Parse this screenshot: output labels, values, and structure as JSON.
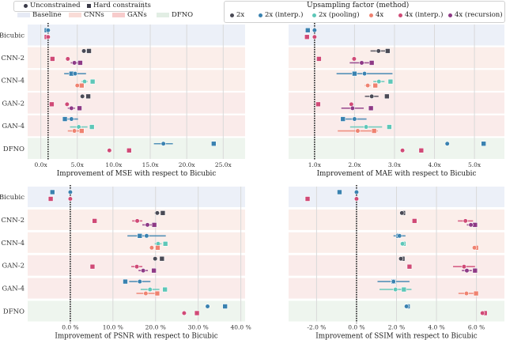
{
  "legend_marker": {
    "items": [
      {
        "label": "Unconstrained",
        "marker": "circle",
        "color": "#3a3a48"
      },
      {
        "label": "Hard constraints",
        "marker": "square",
        "color": "#3a3a48"
      }
    ]
  },
  "legend_groups": {
    "items": [
      {
        "label": "Baseline",
        "color": "#e9ecf6"
      },
      {
        "label": "CNNs",
        "color": "#f9e2e0"
      },
      {
        "label": "GANs",
        "color": "#f7d2d2"
      },
      {
        "label": "DFNO",
        "color": "#e4efe6"
      }
    ]
  },
  "legend_method": {
    "title": "Upsampling factor (method)",
    "items": [
      {
        "label": "2x",
        "color": "#4a4a55"
      },
      {
        "label": "2x (interp.)",
        "color": "#3a82b0"
      },
      {
        "label": "2x (pooling)",
        "color": "#5ec7b8"
      },
      {
        "label": "4x",
        "color": "#ef8270"
      },
      {
        "label": "4x (interp.)",
        "color": "#d04a76"
      },
      {
        "label": "4x (recursion)",
        "color": "#8e3a86"
      }
    ]
  },
  "colors": {
    "2x": "#4a4a55",
    "2x (interp.)": "#3a82b0",
    "2x (pooling)": "#5ec7b8",
    "4x": "#ef8270",
    "4x (interp.)": "#d04a76",
    "4x (recursion)": "#8e3a86",
    "band_baseline": "#ecf0f8",
    "band_cnn": "#fbeeea",
    "band_gan": "#faebea",
    "band_dfno": "#eef5ee",
    "grid": "#d9d9d9",
    "ref_line": "#111111"
  },
  "chart_data": [
    {
      "type": "scatter",
      "title": "",
      "xlabel": "Improvement of MSE with respect to Bicubic",
      "ylabel": "",
      "xlim": [
        -1.8,
        28
      ],
      "xticks": [
        0,
        5,
        10,
        15,
        20,
        25
      ],
      "xtick_labels": [
        "0.0x",
        "5.0x",
        "10.0x",
        "15.0x",
        "20.0x",
        "25.0x"
      ],
      "reference_x": 1.0,
      "categories": [
        "Bicubic",
        "CNN-2",
        "CNN-4",
        "GAN-2",
        "GAN-4",
        "DFNO"
      ],
      "category_groups": [
        "Baseline",
        "CNNs",
        "CNNs",
        "GANs",
        "GANs",
        "DFNO"
      ],
      "points": [
        {
          "cat": "Bicubic",
          "method": "2x (interp.)",
          "unconstrained": 1.0,
          "hard": 0.8,
          "row": 0
        },
        {
          "cat": "Bicubic",
          "method": "4x (interp.)",
          "unconstrained": 1.0,
          "hard": 0.8,
          "row": 1
        },
        {
          "cat": "CNN-2",
          "method": "2x",
          "unconstrained": 5.9,
          "hard": 6.6,
          "err": 0.3,
          "row": 0
        },
        {
          "cat": "CNN-2",
          "method": "4x (interp.)",
          "unconstrained": 3.7,
          "hard": 1.6,
          "row": 1
        },
        {
          "cat": "CNN-2",
          "method": "4x (recursion)",
          "unconstrained": 4.6,
          "hard": 5.4,
          "err": 0.5,
          "row": 2
        },
        {
          "cat": "CNN-4",
          "method": "2x (interp.)",
          "unconstrained": 4.7,
          "hard": 4.2,
          "err": 1.5,
          "row": 0
        },
        {
          "cat": "CNN-4",
          "method": "2x (pooling)",
          "unconstrained": 6.0,
          "hard": 7.1,
          "err": 0.4,
          "row": 1
        },
        {
          "cat": "CNN-4",
          "method": "4x",
          "unconstrained": 5.0,
          "hard": 5.6,
          "row": 2
        },
        {
          "cat": "GAN-2",
          "method": "2x",
          "unconstrained": 5.7,
          "hard": 6.5,
          "row": 0
        },
        {
          "cat": "GAN-2",
          "method": "4x (interp.)",
          "unconstrained": 3.6,
          "hard": 1.5,
          "row": 1
        },
        {
          "cat": "GAN-2",
          "method": "4x (recursion)",
          "unconstrained": 4.2,
          "hard": 5.3,
          "err": 0.5,
          "row": 2
        },
        {
          "cat": "GAN-4",
          "method": "2x (interp.)",
          "unconstrained": 4.2,
          "hard": 3.3,
          "err": 0.9,
          "row": 0
        },
        {
          "cat": "GAN-4",
          "method": "2x (pooling)",
          "unconstrained": 5.2,
          "hard": 7.0,
          "err": 1.2,
          "row": 1
        },
        {
          "cat": "GAN-4",
          "method": "4x",
          "unconstrained": 4.6,
          "hard": 5.6,
          "err": 0.9,
          "row": 2
        },
        {
          "cat": "DFNO",
          "method": "2x (interp.)",
          "unconstrained": 16.8,
          "hard": 23.7,
          "err": 1.3,
          "row": 0
        },
        {
          "cat": "DFNO",
          "method": "4x (interp.)",
          "unconstrained": 9.4,
          "hard": 12.1,
          "row": 1
        }
      ]
    },
    {
      "type": "scatter",
      "title": "",
      "xlabel": "Improvement of MAE with respect to Bicubic",
      "ylabel": "",
      "xlim": [
        0.35,
        5.75
      ],
      "xticks": [
        1,
        2,
        3,
        4,
        5
      ],
      "xtick_labels": [
        "1.0x",
        "2.0x",
        "3.0x",
        "4.0x",
        "5.0x"
      ],
      "reference_x": 1.0,
      "categories": [
        "Bicubic",
        "CNN-2",
        "CNN-4",
        "GAN-2",
        "GAN-4",
        "DFNO"
      ],
      "category_groups": [
        "Baseline",
        "CNNs",
        "CNNs",
        "GANs",
        "GANs",
        "DFNO"
      ],
      "points": [
        {
          "cat": "Bicubic",
          "method": "2x (interp.)",
          "unconstrained": 1.0,
          "hard": 0.83,
          "row": 0
        },
        {
          "cat": "Bicubic",
          "method": "4x (interp.)",
          "unconstrained": 1.0,
          "hard": 0.81,
          "row": 1
        },
        {
          "cat": "CNN-2",
          "method": "2x",
          "unconstrained": 2.6,
          "hard": 2.83,
          "err": 0.2,
          "row": 0
        },
        {
          "cat": "CNN-2",
          "method": "4x (interp.)",
          "unconstrained": 1.99,
          "hard": 1.11,
          "err": 0.06,
          "row": 1
        },
        {
          "cat": "CNN-2",
          "method": "4x (recursion)",
          "unconstrained": 2.18,
          "hard": 2.43,
          "err": 0.3,
          "row": 2
        },
        {
          "cat": "CNN-4",
          "method": "2x (interp.)",
          "unconstrained": 2.25,
          "hard": 2.0,
          "err": 0.7,
          "row": 0
        },
        {
          "cat": "CNN-4",
          "method": "2x (pooling)",
          "unconstrained": 2.61,
          "hard": 2.9,
          "err": 0.14,
          "row": 1
        },
        {
          "cat": "CNN-4",
          "method": "4x",
          "unconstrained": 2.33,
          "hard": 2.52,
          "err": 0.07,
          "row": 2
        },
        {
          "cat": "GAN-2",
          "method": "2x",
          "unconstrained": 2.43,
          "hard": 2.81,
          "err": 0.17,
          "row": 0
        },
        {
          "cat": "GAN-2",
          "method": "4x (interp.)",
          "unconstrained": 1.92,
          "hard": 1.09,
          "err": 0.05,
          "row": 1
        },
        {
          "cat": "GAN-2",
          "method": "4x (recursion)",
          "unconstrained": 1.95,
          "hard": 2.41,
          "err": 0.28,
          "row": 2
        },
        {
          "cat": "GAN-4",
          "method": "2x (interp.)",
          "unconstrained": 2.0,
          "hard": 1.71,
          "err": 0.3,
          "row": 0
        },
        {
          "cat": "GAN-4",
          "method": "2x (pooling)",
          "unconstrained": 2.29,
          "hard": 2.87,
          "err": 0.4,
          "row": 1
        },
        {
          "cat": "GAN-4",
          "method": "4x",
          "unconstrained": 2.08,
          "hard": 2.49,
          "err": 0.5,
          "row": 2
        },
        {
          "cat": "DFNO",
          "method": "2x (interp.)",
          "unconstrained": 4.32,
          "hard": 5.23,
          "row": 0
        },
        {
          "cat": "DFNO",
          "method": "4x (interp.)",
          "unconstrained": 3.2,
          "hard": 3.67,
          "row": 1
        }
      ]
    },
    {
      "type": "scatter",
      "title": "",
      "xlabel": "Improvement of PSNR with respect to Bicubic",
      "ylabel": "",
      "xlim": [
        -10,
        41
      ],
      "xticks": [
        0,
        10,
        20,
        30,
        40
      ],
      "xtick_labels": [
        "0.0 %",
        "10.0 %",
        "20.0 %",
        "30.0 %",
        "40.0 %"
      ],
      "reference_x": 0.0,
      "categories": [
        "Bicubic",
        "CNN-2",
        "CNN-4",
        "GAN-2",
        "GAN-4",
        "DFNO"
      ],
      "category_groups": [
        "Baseline",
        "CNNs",
        "CNNs",
        "GANs",
        "GANs",
        "DFNO"
      ],
      "points": [
        {
          "cat": "Bicubic",
          "method": "2x (interp.)",
          "unconstrained": 0.0,
          "hard": -4.2,
          "row": 0
        },
        {
          "cat": "Bicubic",
          "method": "4x (interp.)",
          "unconstrained": 0.0,
          "hard": -4.6,
          "row": 1
        },
        {
          "cat": "CNN-2",
          "method": "2x",
          "unconstrained": 20.4,
          "hard": 21.7,
          "err": 0.6,
          "row": 0
        },
        {
          "cat": "CNN-2",
          "method": "4x (interp.)",
          "unconstrained": 15.7,
          "hard": 5.7,
          "err": 1.2,
          "row": 1
        },
        {
          "cat": "CNN-2",
          "method": "4x (recursion)",
          "unconstrained": 18.1,
          "hard": 19.7,
          "err": 1.2,
          "row": 2
        },
        {
          "cat": "CNN-4",
          "method": "2x (interp.)",
          "unconstrained": 17.9,
          "hard": 16.3,
          "err": 4.5,
          "row": 0
        },
        {
          "cat": "CNN-4",
          "method": "2x (pooling)",
          "unconstrained": 20.6,
          "hard": 22.3,
          "err": 0.8,
          "row": 1
        },
        {
          "cat": "CNN-4",
          "method": "4x",
          "unconstrained": 19.1,
          "hard": 20.5,
          "row": 2
        },
        {
          "cat": "GAN-2",
          "method": "2x",
          "unconstrained": 19.9,
          "hard": 21.5,
          "row": 0
        },
        {
          "cat": "GAN-2",
          "method": "4x (interp.)",
          "unconstrained": 15.6,
          "hard": 5.2,
          "err": 1.3,
          "row": 1
        },
        {
          "cat": "GAN-2",
          "method": "4x (recursion)",
          "unconstrained": 17.1,
          "hard": 19.6,
          "err": 1.1,
          "row": 2
        },
        {
          "cat": "GAN-4",
          "method": "2x (interp.)",
          "unconstrained": 16.3,
          "hard": 12.9,
          "err": 2.5,
          "row": 0
        },
        {
          "cat": "GAN-4",
          "method": "2x (pooling)",
          "unconstrained": 18.7,
          "hard": 22.2,
          "err": 2.2,
          "row": 1
        },
        {
          "cat": "GAN-4",
          "method": "4x",
          "unconstrained": 17.7,
          "hard": 20.4,
          "err": 2.2,
          "row": 2
        },
        {
          "cat": "DFNO",
          "method": "2x (interp.)",
          "unconstrained": 32.2,
          "hard": 36.3,
          "row": 0
        },
        {
          "cat": "DFNO",
          "method": "4x (interp.)",
          "unconstrained": 26.7,
          "hard": 29.7,
          "row": 1
        }
      ]
    },
    {
      "type": "scatter",
      "title": "",
      "xlabel": "Improvement of SSIM with respect to Bicubic",
      "ylabel": "",
      "xlim": [
        -3.4,
        7.4
      ],
      "xticks": [
        -2,
        0,
        2,
        4,
        6
      ],
      "xtick_labels": [
        "-2.0 %",
        "0.0 %",
        "2.0 %",
        "4.0 %",
        "6.0 %"
      ],
      "reference_x": 0.0,
      "categories": [
        "Bicubic",
        "CNN-2",
        "CNN-4",
        "GAN-2",
        "GAN-4",
        "DFNO"
      ],
      "category_groups": [
        "Baseline",
        "CNNs",
        "CNNs",
        "GANs",
        "GANs",
        "DFNO"
      ],
      "points": [
        {
          "cat": "Bicubic",
          "method": "2x (interp.)",
          "unconstrained": 0.0,
          "hard": -0.85,
          "row": 0
        },
        {
          "cat": "Bicubic",
          "method": "4x (interp.)",
          "unconstrained": 0.0,
          "hard": -2.45,
          "row": 1
        },
        {
          "cat": "CNN-2",
          "method": "2x",
          "unconstrained": 2.27,
          "hard": 2.33,
          "row": 0
        },
        {
          "cat": "CNN-2",
          "method": "4x (interp.)",
          "unconstrained": 5.45,
          "hard": 2.9,
          "err": 0.38,
          "row": 1
        },
        {
          "cat": "CNN-2",
          "method": "4x (recursion)",
          "unconstrained": 5.72,
          "hard": 5.93,
          "err": 0.2,
          "row": 2
        },
        {
          "cat": "CNN-4",
          "method": "2x (interp.)",
          "unconstrained": 2.15,
          "hard": 2.1,
          "err": 0.3,
          "row": 0
        },
        {
          "cat": "CNN-4",
          "method": "2x (pooling)",
          "unconstrained": 2.3,
          "hard": 2.35,
          "row": 1
        },
        {
          "cat": "CNN-4",
          "method": "4x",
          "unconstrained": 5.9,
          "hard": 5.98,
          "row": 2
        },
        {
          "cat": "GAN-2",
          "method": "2x",
          "unconstrained": 2.22,
          "hard": 2.3,
          "row": 0
        },
        {
          "cat": "GAN-2",
          "method": "4x (interp.)",
          "unconstrained": 5.38,
          "hard": 2.65,
          "err": 0.55,
          "row": 1
        },
        {
          "cat": "GAN-2",
          "method": "4x (recursion)",
          "unconstrained": 5.52,
          "hard": 5.93,
          "err": 0.25,
          "row": 2
        },
        {
          "cat": "GAN-4",
          "method": "2x (interp.)",
          "unconstrained": 1.85,
          "hard": 1.85,
          "err": 0.8,
          "row": 0
        },
        {
          "cat": "GAN-4",
          "method": "2x (pooling)",
          "unconstrained": 1.95,
          "hard": 2.37,
          "err": 0.8,
          "row": 1
        },
        {
          "cat": "GAN-4",
          "method": "4x",
          "unconstrained": 5.5,
          "hard": 5.98,
          "err": 0.4,
          "row": 2
        },
        {
          "cat": "DFNO",
          "method": "2x (interp.)",
          "unconstrained": 2.5,
          "hard": 2.56,
          "row": 0
        },
        {
          "cat": "DFNO",
          "method": "4x (interp.)",
          "unconstrained": 6.3,
          "hard": 6.42,
          "row": 1
        }
      ]
    }
  ]
}
